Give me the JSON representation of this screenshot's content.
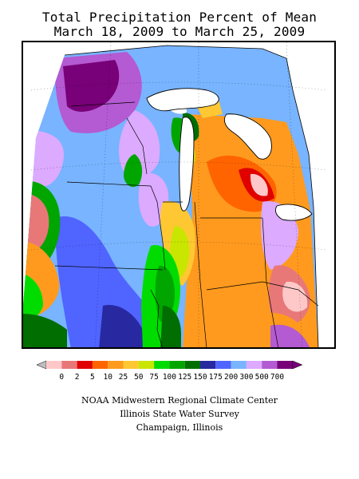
{
  "title": {
    "line1": "Total Precipitation Percent of Mean",
    "line2": "March 18, 2009 to March 25, 2009"
  },
  "legend": {
    "labels": [
      "0",
      "2",
      "5",
      "10",
      "25",
      "50",
      "75",
      "100",
      "125",
      "150",
      "175",
      "200",
      "300",
      "500",
      "700"
    ],
    "colors": [
      "#ffc8c8",
      "#e87878",
      "#e00000",
      "#ff6400",
      "#ff9a1e",
      "#ffc832",
      "#c8e600",
      "#00dc00",
      "#00a500",
      "#006e00",
      "#2828a0",
      "#5064ff",
      "#78b4ff",
      "#dcaaff",
      "#b45ad2",
      "#780078"
    ],
    "low_arrow_color": "#bebebe",
    "high_arrow_color": "#780078"
  },
  "credits": {
    "line1": "NOAA Midwestern Regional Climate Center",
    "line2": "Illinois State Water Survey",
    "line3": "Champaign, Illinois"
  }
}
